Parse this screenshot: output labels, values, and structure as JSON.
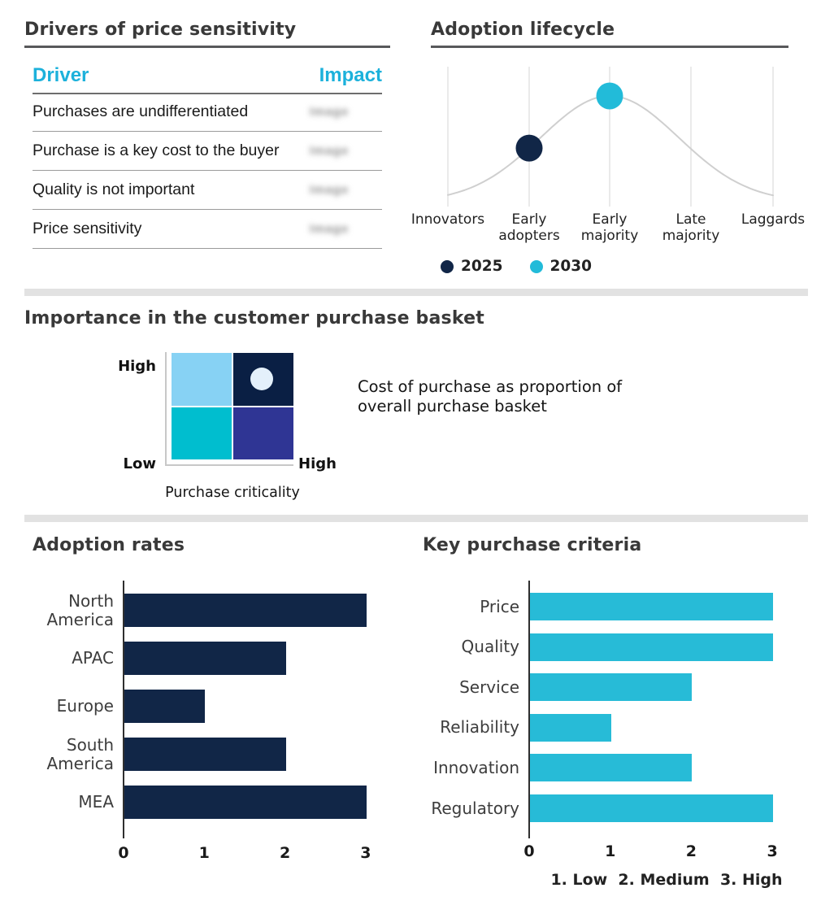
{
  "palette": {
    "navy": "#112647",
    "navy_dark": "#0a1f44",
    "cyan": "#27bbd7",
    "cyan_text": "#1cb1db",
    "teal": "#00becf",
    "light_blue": "#87d2f4",
    "indigo": "#2f3594",
    "pale_circle": "#e4f0fb",
    "curve_gray": "#cfcfcf",
    "grid_gray": "#dedede",
    "divider_gray": "#e2e2e2"
  },
  "drivers": {
    "title": "Drivers of price sensitivity",
    "col_driver": "Driver",
    "col_impact": "Impact",
    "rows": [
      {
        "driver": "Purchases are undifferentiated",
        "impact": "Image"
      },
      {
        "driver": "Purchase is a key cost to the buyer",
        "impact": "Image"
      },
      {
        "driver": "Quality is not important",
        "impact": "Image"
      },
      {
        "driver": "Price sensitivity",
        "impact": "Image"
      }
    ]
  },
  "chart_data": [
    {
      "id": "adoption_lifecycle",
      "type": "line",
      "title": "Adoption lifecycle",
      "x": [
        "Innovators",
        "Early adopters",
        "Early majority",
        "Late majority",
        "Laggards"
      ],
      "curve": "gray bell curve peaking at Early majority",
      "series": [
        {
          "name": "2025",
          "stage": "Early adopters",
          "stage_index": 1,
          "color": "#112647"
        },
        {
          "name": "2030",
          "stage": "Early majority",
          "stage_index": 2,
          "color": "#22bbd9"
        }
      ],
      "legend_position": "bottom",
      "grid": "vertical gridlines at each stage"
    },
    {
      "id": "purchase_matrix",
      "type": "heatmap",
      "title": "Importance in the customer purchase basket",
      "x_axis_label": "Purchase criticality",
      "y_top_label": "High",
      "y_bottom_label": "Low",
      "x_right_label": "High",
      "cells": [
        [
          "#87d2f4",
          "#0a1f44"
        ],
        [
          "#00becf",
          "#2f3594"
        ]
      ],
      "marker": {
        "row": 0,
        "col": 1,
        "color": "#e4f0fb"
      },
      "annotation": "Cost of purchase as proportion of overall purchase basket"
    },
    {
      "id": "adoption_rates",
      "type": "bar",
      "title": "Adoption rates",
      "orientation": "horizontal",
      "categories": [
        "North America",
        "APAC",
        "Europe",
        "South America",
        "MEA"
      ],
      "values": [
        3,
        2,
        1,
        2,
        3
      ],
      "xlim": [
        0,
        3
      ],
      "xticks": [
        0,
        1,
        2,
        3
      ],
      "bar_color": "#112647"
    },
    {
      "id": "key_criteria",
      "type": "bar",
      "title": "Key purchase criteria",
      "orientation": "horizontal",
      "categories": [
        "Price",
        "Quality",
        "Service",
        "Reliability",
        "Innovation",
        "Regulatory"
      ],
      "values": [
        3,
        3,
        2,
        1,
        2,
        3
      ],
      "xlim": [
        0,
        3
      ],
      "xticks": [
        0,
        1,
        2,
        3
      ],
      "bar_color": "#27bbd7",
      "footnote": "1. Low  2. Medium  3. High"
    }
  ]
}
